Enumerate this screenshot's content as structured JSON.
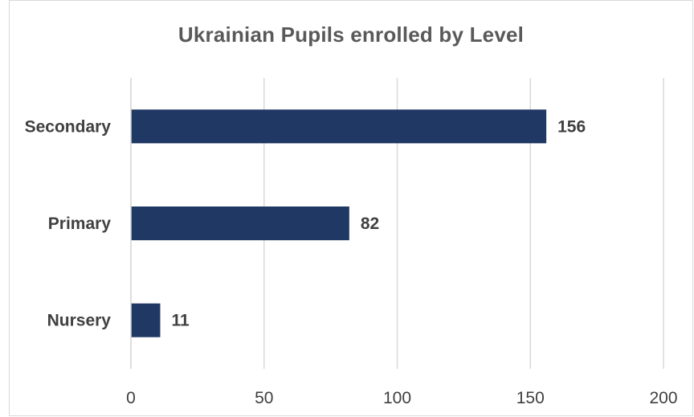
{
  "chart_data": {
    "type": "bar",
    "orientation": "horizontal",
    "title": "Ukrainian Pupils enrolled by Level",
    "categories": [
      "Secondary",
      "Primary",
      "Nursery"
    ],
    "values": [
      156,
      82,
      11
    ],
    "xlabel": "",
    "ylabel": "",
    "xlim": [
      0,
      200
    ],
    "xticks": [
      0,
      50,
      100,
      150,
      200
    ],
    "grid": true,
    "legend": "none",
    "data_labels": true,
    "bar_color": "#203864",
    "grid_color": "#d9d9d9"
  }
}
